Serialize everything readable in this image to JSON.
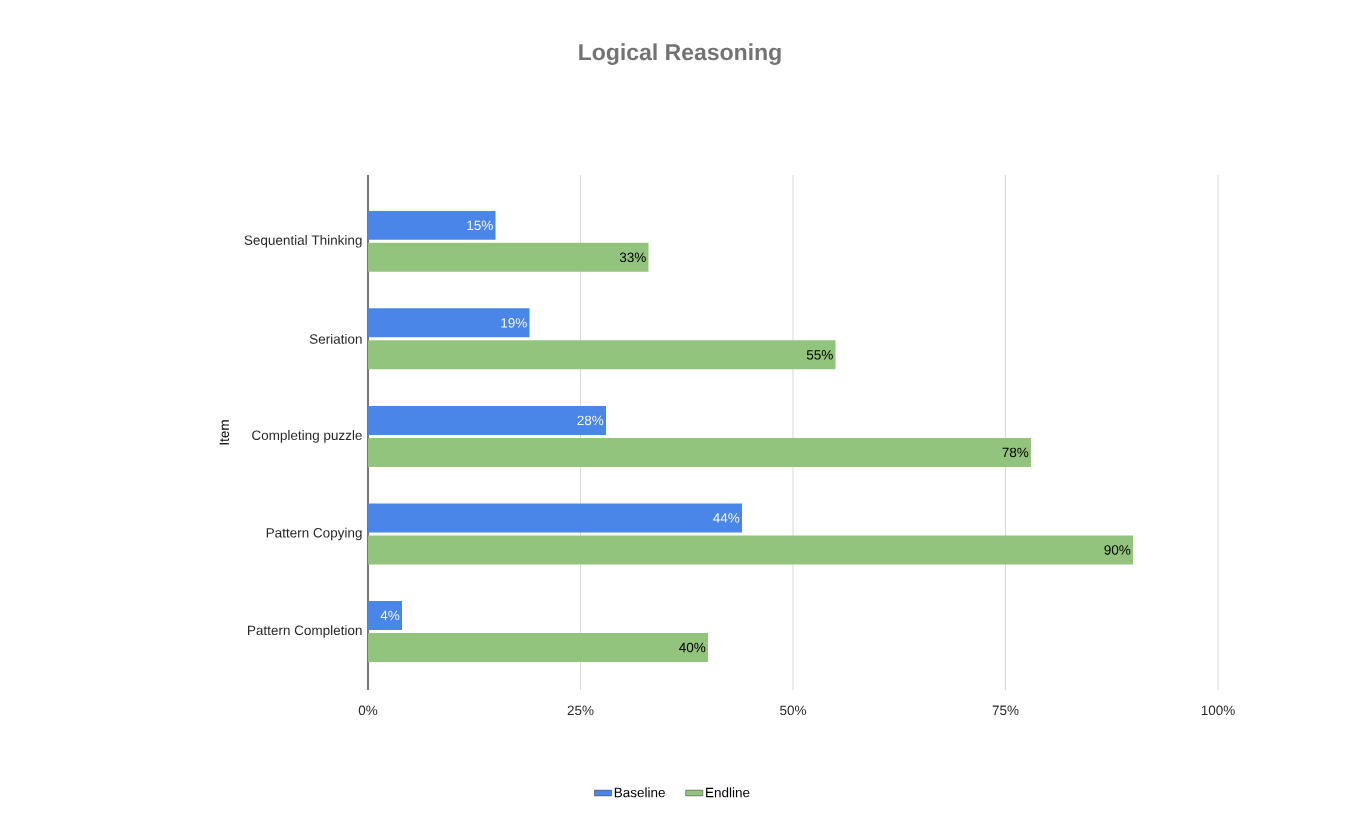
{
  "chart_data": {
    "type": "bar",
    "orientation": "horizontal",
    "title": "Logical Reasoning",
    "ylabel": "Item",
    "categories": [
      "Sequential Thinking",
      "Seriation",
      "Completing puzzle",
      "Pattern Copying",
      "Pattern Completion"
    ],
    "series": [
      {
        "name": "Baseline",
        "color": "#4a86e8",
        "values": [
          15,
          19,
          28,
          44,
          4
        ],
        "value_labels": [
          "15%",
          "19%",
          "28%",
          "44%",
          "4%"
        ]
      },
      {
        "name": "Endline",
        "color": "#93c47d",
        "values": [
          33,
          55,
          78,
          90,
          40
        ],
        "value_labels": [
          "33%",
          "55%",
          "78%",
          "90%",
          "40%"
        ]
      }
    ],
    "xlim": [
      0,
      100
    ],
    "xticks": [
      {
        "value": 0,
        "label": "0%"
      },
      {
        "value": 25,
        "label": "25%"
      },
      {
        "value": 50,
        "label": "50%"
      },
      {
        "value": 75,
        "label": "75%"
      },
      {
        "value": 100,
        "label": "100%"
      }
    ],
    "grid": "x",
    "legend": "bottom"
  }
}
